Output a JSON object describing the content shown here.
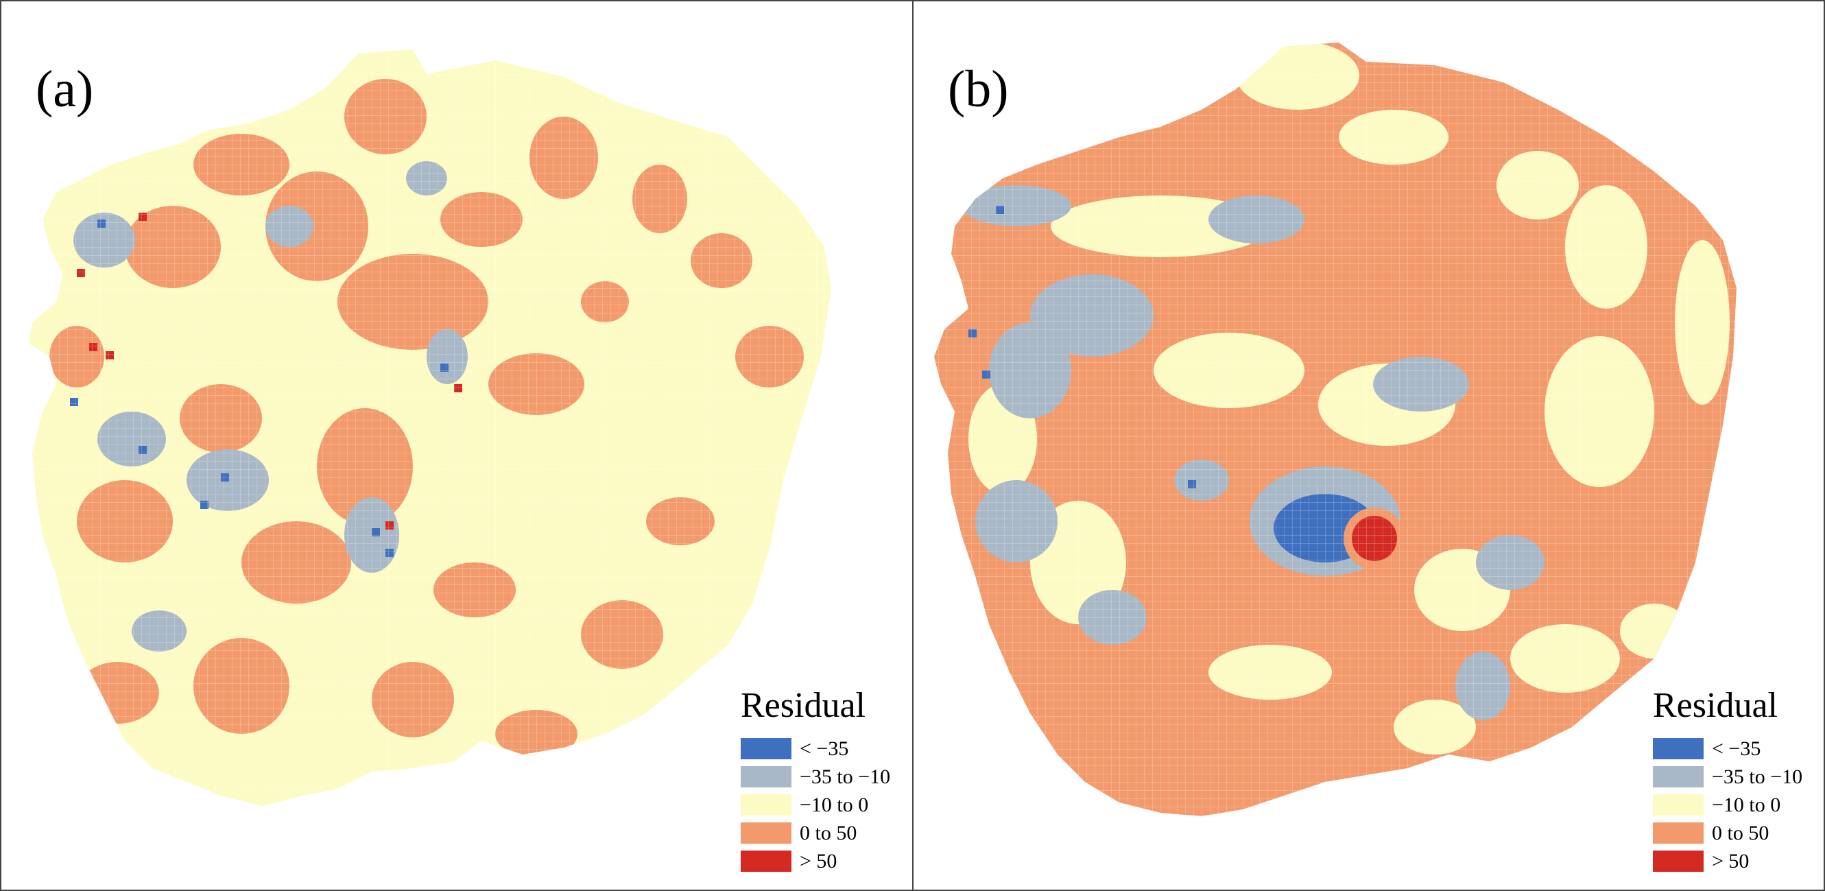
{
  "panels": [
    {
      "label": "(a)"
    },
    {
      "label": "(b)"
    }
  ],
  "legend": {
    "title": "Residual",
    "items": [
      {
        "label": "< −35",
        "color": "#3f6fbf"
      },
      {
        "label": "−35 to −10",
        "color": "#a9b8c6"
      },
      {
        "label": "−10 to 0",
        "color": "#fdfbc4"
      },
      {
        "label": "0 to 50",
        "color": "#f29a6c"
      },
      {
        "label": "> 50",
        "color": "#d42a23"
      }
    ]
  }
}
